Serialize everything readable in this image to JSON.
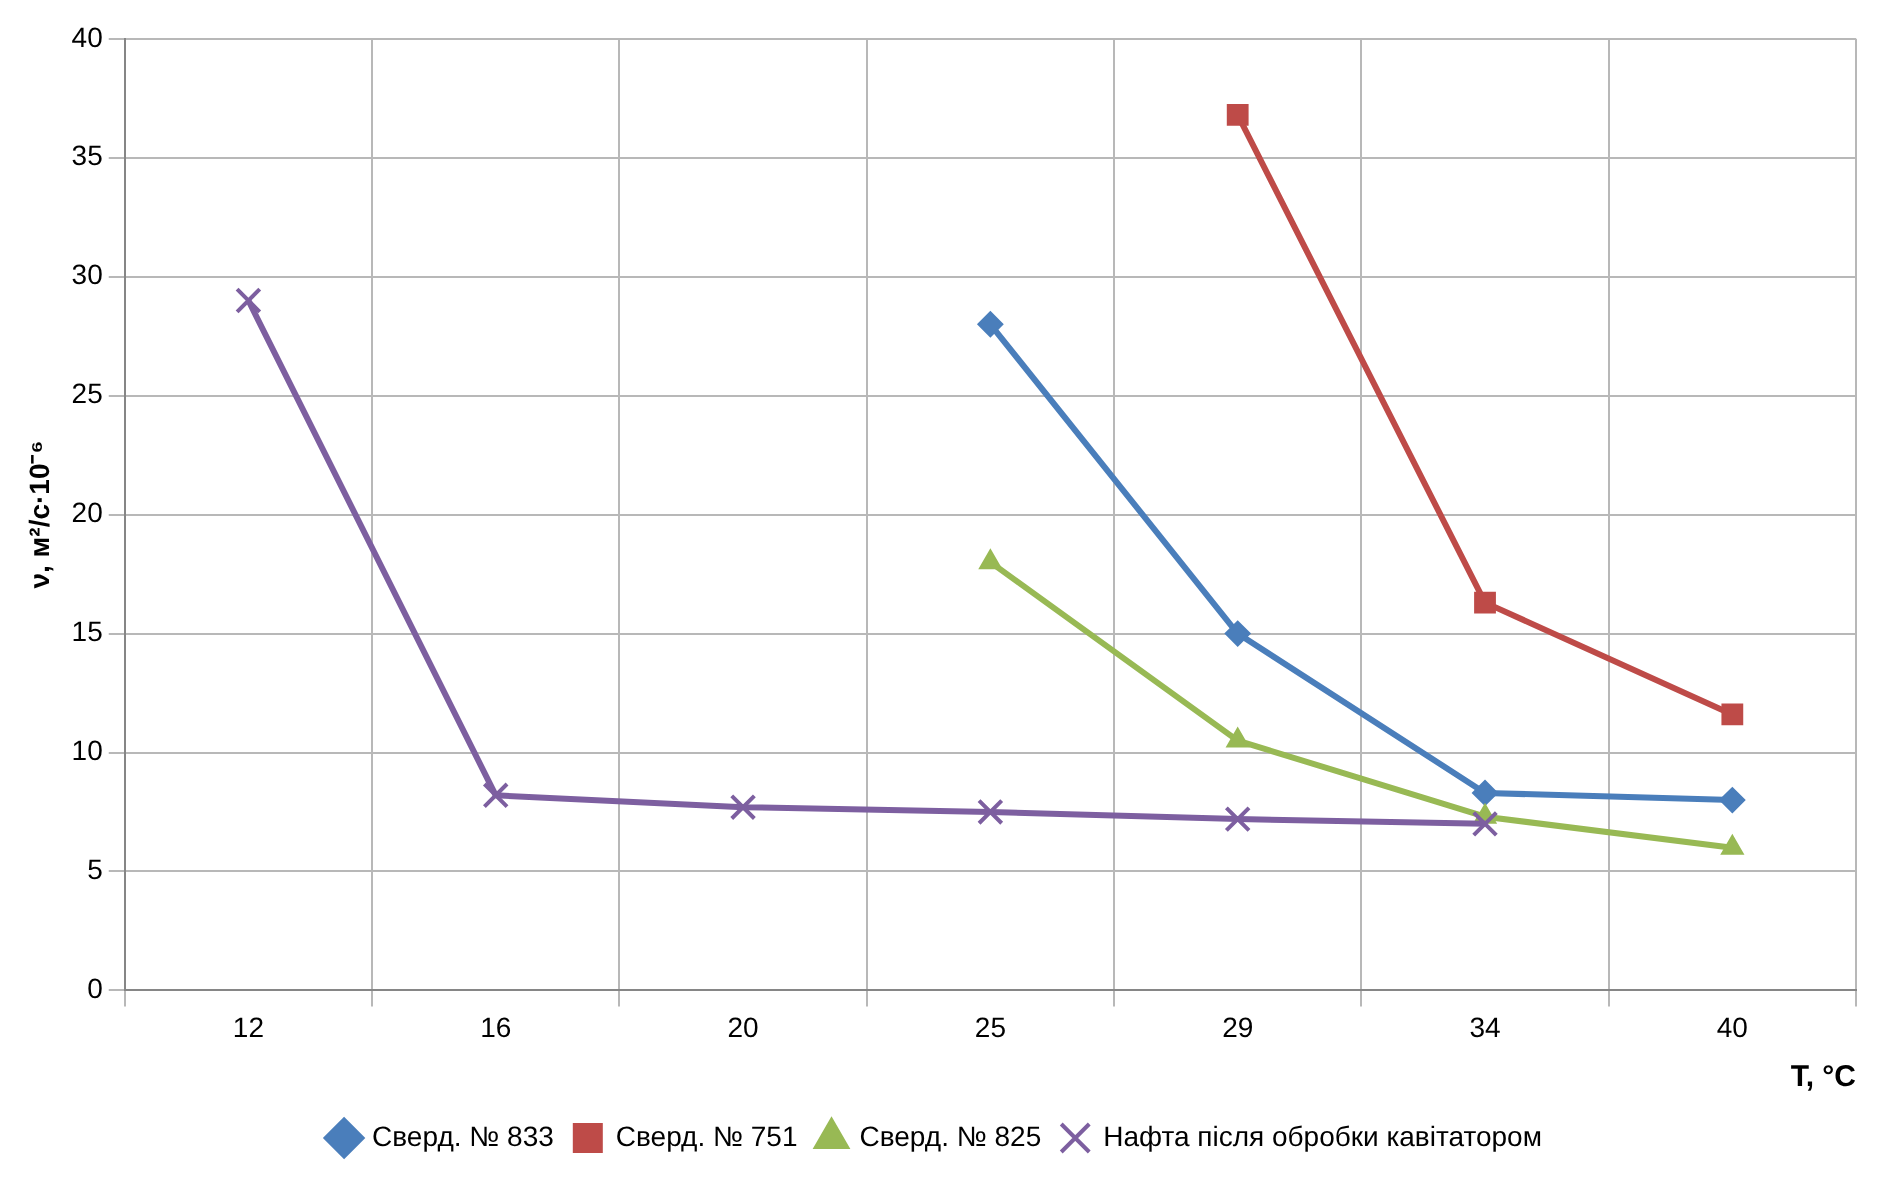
{
  "chart_data": {
    "type": "line",
    "xlabel": "T, °C",
    "ylabel": "ν, м²/с·10⁻⁶",
    "categories": [
      "12",
      "16",
      "20",
      "25",
      "29",
      "34",
      "40"
    ],
    "ylim": [
      0,
      40
    ],
    "yticks": [
      0,
      5,
      10,
      15,
      20,
      25,
      30,
      35,
      40
    ],
    "grid": true,
    "legend": "bottom",
    "line_style": "solid",
    "series": [
      {
        "name": "Сверд. № 833",
        "color": "#4a7ebb",
        "marker": "diamond",
        "values": [
          null,
          null,
          null,
          28,
          15,
          8.3,
          8
        ]
      },
      {
        "name": "Сверд. № 751",
        "color": "#be4b48",
        "marker": "square",
        "values": [
          null,
          null,
          null,
          null,
          36.8,
          16.3,
          11.6
        ]
      },
      {
        "name": "Сверд. № 825",
        "color": "#98b954",
        "marker": "triangle",
        "values": [
          null,
          null,
          null,
          18,
          10.5,
          7.3,
          6
        ]
      },
      {
        "name": "Нафта після обробки кавітатором",
        "color": "#7d5fa0",
        "marker": "cross",
        "values": [
          29,
          8.2,
          7.7,
          7.5,
          7.2,
          7.0,
          null
        ]
      }
    ]
  }
}
